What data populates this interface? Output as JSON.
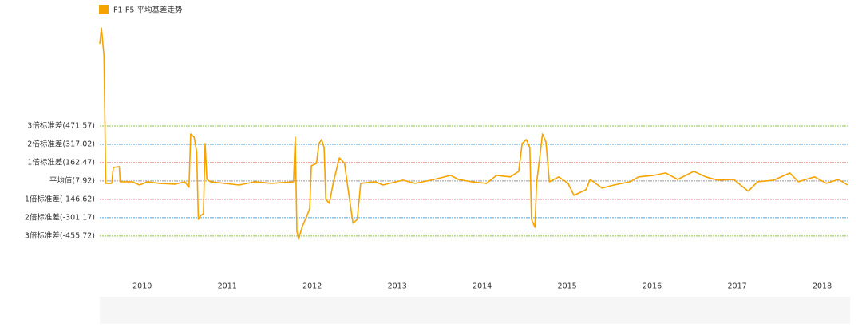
{
  "chart_data": {
    "type": "line",
    "legend": "top-left",
    "series": [
      {
        "name": "F1-F5 平均基差走势",
        "color": "#f5a300",
        "x": [
          2009.5,
          2009.52,
          2009.55,
          2009.57,
          2009.64,
          2009.66,
          2009.73,
          2009.74,
          2009.88,
          2009.97,
          2010.06,
          2010.2,
          2010.39,
          2010.5,
          2010.55,
          2010.57,
          2010.61,
          2010.64,
          2010.66,
          2010.69,
          2010.72,
          2010.74,
          2010.76,
          2010.8,
          2011.14,
          2011.33,
          2011.52,
          2011.78,
          2011.8,
          2011.82,
          2011.84,
          2011.88,
          2011.94,
          2011.97,
          2011.99,
          2012.05,
          2012.08,
          2012.11,
          2012.14,
          2012.16,
          2012.2,
          2012.22,
          2012.25,
          2012.32,
          2012.38,
          2012.41,
          2012.48,
          2012.53,
          2012.57,
          2012.74,
          2012.83,
          2013.07,
          2013.21,
          2013.4,
          2013.63,
          2013.72,
          2013.87,
          2014.05,
          2014.17,
          2014.33,
          2014.43,
          2014.47,
          2014.52,
          2014.56,
          2014.58,
          2014.62,
          2014.64,
          2014.71,
          2014.75,
          2014.79,
          2014.9,
          2015.01,
          2015.08,
          2015.22,
          2015.27,
          2015.41,
          2015.55,
          2015.74,
          2015.84,
          2016.02,
          2016.16,
          2016.3,
          2016.49,
          2016.63,
          2016.77,
          2016.96,
          2017.13,
          2017.24,
          2017.43,
          2017.62,
          2017.72,
          2017.91,
          2018.05,
          2018.19,
          2018.3
        ],
        "values": [
          1164,
          1298,
          1063,
          -12,
          -12,
          122,
          129,
          1,
          1,
          -26,
          1,
          -12,
          -19,
          1,
          -46,
          404,
          378,
          257,
          -315,
          -281,
          -268,
          324,
          21,
          1,
          -26,
          1,
          -12,
          1,
          378,
          -415,
          -483,
          -382,
          -281,
          -227,
          136,
          156,
          324,
          357,
          290,
          -147,
          -180,
          -113,
          1,
          203,
          156,
          1,
          -348,
          -315,
          -12,
          1,
          -26,
          15,
          -12,
          15,
          55,
          21,
          1,
          -12,
          55,
          42,
          89,
          324,
          357,
          290,
          -315,
          -382,
          -12,
          404,
          337,
          1,
          42,
          -12,
          -113,
          -66,
          21,
          -52,
          -26,
          1,
          42,
          55,
          75,
          21,
          89,
          42,
          15,
          21,
          -79,
          1,
          15,
          75,
          1,
          42,
          -12,
          21,
          -26
        ]
      }
    ],
    "xlim": [
      2009.5,
      2018.3
    ],
    "xticks": [
      2010,
      2011,
      2012,
      2013,
      2014,
      2015,
      2016,
      2017,
      2018
    ],
    "ylim": [
      -800,
      1400
    ],
    "yticks": [
      {
        "value": 471.57,
        "label": "3倍标准差(471.57)"
      },
      {
        "value": 317.02,
        "label": "2倍标准差(317.02)"
      },
      {
        "value": 162.47,
        "label": "1倍标准差(162.47)"
      },
      {
        "value": 7.92,
        "label": "平均值(7.92)"
      },
      {
        "value": -146.62,
        "label": "1倍标准差(-146.62)"
      },
      {
        "value": -301.17,
        "label": "2倍标准差(-301.17)"
      },
      {
        "value": -455.72,
        "label": "3倍标准差(-455.72)"
      }
    ],
    "ytick_colors": [
      "#8bc34a",
      "#4aa3df",
      "#d9534f",
      "#999999",
      "#e86a8a",
      "#4aa3df",
      "#8bc34a"
    ]
  }
}
